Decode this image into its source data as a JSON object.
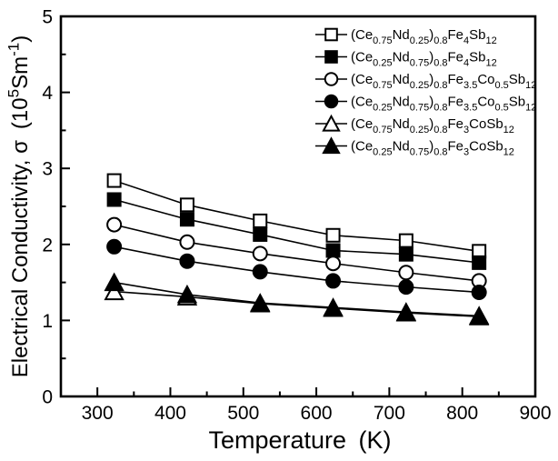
{
  "chart_data": {
    "type": "line",
    "title": "",
    "xlabel": "Temperature (K)",
    "ylabel": "Electrical Conductivity, σ (10^{5}Sm^{-1})",
    "xlim": [
      250,
      900
    ],
    "ylim": [
      0,
      5
    ],
    "x_major_ticks": [
      300,
      400,
      500,
      600,
      700,
      800,
      900
    ],
    "x_minor_step": 50,
    "y_major_ticks": [
      0,
      1,
      2,
      3,
      4,
      5
    ],
    "y_minor_step": 0.5,
    "grid": false,
    "legend_position": "top-right-inside",
    "x": [
      323,
      423,
      523,
      623,
      723,
      823
    ],
    "series": [
      {
        "name": "(Ce_{0.75}Nd_{0.25})_{0.8}Fe_{4}Sb_{12}",
        "marker": "square",
        "fill": "open",
        "values": [
          2.84,
          2.52,
          2.31,
          2.12,
          2.05,
          1.91
        ]
      },
      {
        "name": "(Ce_{0.25}Nd_{0.75})_{0.8}Fe_{4}Sb_{12}",
        "marker": "square",
        "fill": "filled",
        "values": [
          2.59,
          2.33,
          2.13,
          1.92,
          1.87,
          1.76
        ]
      },
      {
        "name": "(Ce_{0.75}Nd_{0.25})_{0.8}Fe_{3.5}Co_{0.5}Sb_{12}",
        "marker": "circle",
        "fill": "open",
        "values": [
          2.26,
          2.03,
          1.88,
          1.75,
          1.63,
          1.52
        ]
      },
      {
        "name": "(Ce_{0.25}Nd_{0.75})_{0.8}Fe_{3.5}Co_{0.5}Sb_{12}",
        "marker": "circle",
        "fill": "filled",
        "values": [
          1.97,
          1.78,
          1.64,
          1.52,
          1.44,
          1.37
        ]
      },
      {
        "name": "(Ce_{0.75}Nd_{0.25})_{0.8}Fe_{3}CoSb_{12}",
        "marker": "triangle",
        "fill": "open",
        "values": [
          1.38,
          1.31,
          1.22,
          1.16,
          1.1,
          1.05
        ]
      },
      {
        "name": "(Ce_{0.25}Nd_{0.75})_{0.8}Fe_{3}CoSb_{12}",
        "marker": "triangle",
        "fill": "filled",
        "values": [
          1.5,
          1.34,
          1.23,
          1.17,
          1.11,
          1.06
        ]
      }
    ],
    "colors": {
      "foreground": "#000000",
      "background": "#ffffff"
    }
  }
}
